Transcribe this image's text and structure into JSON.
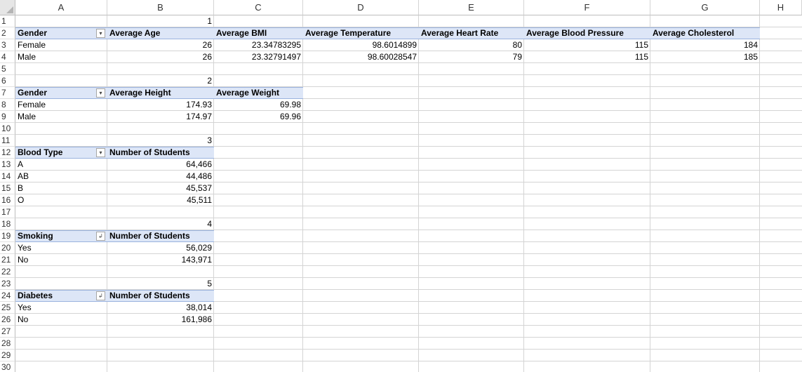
{
  "columns": [
    "A",
    "B",
    "C",
    "D",
    "E",
    "F",
    "G",
    "H"
  ],
  "rows": [
    "1",
    "2",
    "3",
    "4",
    "5",
    "6",
    "7",
    "8",
    "9",
    "10",
    "11",
    "12",
    "13",
    "14",
    "15",
    "16",
    "17",
    "18",
    "19",
    "20",
    "21",
    "22",
    "23",
    "24",
    "25",
    "26",
    "27",
    "28",
    "29",
    "30"
  ],
  "pivot1": {
    "number": "1",
    "headers": [
      "Gender",
      "Average Age",
      "Average BMI",
      "Average Temperature",
      "Average Heart Rate",
      "Average Blood Pressure",
      "Average Cholesterol"
    ],
    "rows": [
      [
        "Female",
        "26",
        "23.34783295",
        "98.6014899",
        "80",
        "115",
        "184"
      ],
      [
        "Male",
        "26",
        "23.32791497",
        "98.60028547",
        "79",
        "115",
        "185"
      ]
    ]
  },
  "pivot2": {
    "number": "2",
    "headers": [
      "Gender",
      "Average Height",
      "Average Weight"
    ],
    "rows": [
      [
        "Female",
        "174.93",
        "69.98"
      ],
      [
        "Male",
        "174.97",
        "69.96"
      ]
    ]
  },
  "pivot3": {
    "number": "3",
    "headers": [
      "Blood Type",
      "Number of Students"
    ],
    "rows": [
      [
        "A",
        "64,466"
      ],
      [
        "AB",
        "44,486"
      ],
      [
        "B",
        "45,537"
      ],
      [
        "O",
        "45,511"
      ]
    ]
  },
  "pivot4": {
    "number": "4",
    "headers": [
      "Smoking",
      "Number of Students"
    ],
    "rows": [
      [
        "Yes",
        "56,029"
      ],
      [
        "No",
        "143,971"
      ]
    ]
  },
  "pivot5": {
    "number": "5",
    "headers": [
      "Diabetes",
      "Number of Students"
    ],
    "rows": [
      [
        "Yes",
        "38,014"
      ],
      [
        "No",
        "161,986"
      ]
    ]
  },
  "icons": {
    "filter_dropdown": "filter-dropdown-icon",
    "sorted_filter": "sort-filter-icon"
  }
}
